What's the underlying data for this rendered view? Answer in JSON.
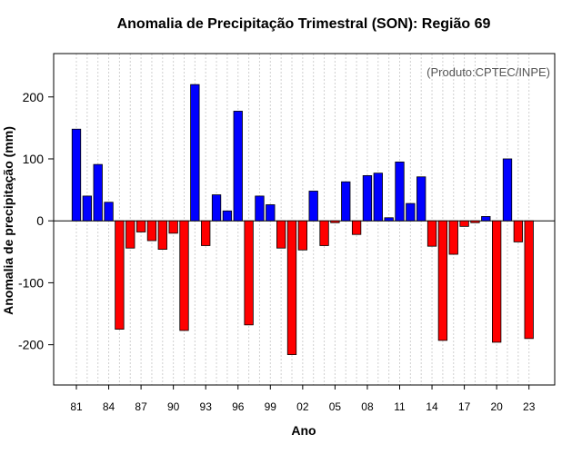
{
  "chart_data": {
    "type": "bar",
    "title": "Anomalia de Precipitação Trimestral (SON): Região 69",
    "xlabel": "Ano",
    "ylabel": "Anomalia de precipitação (mm)",
    "annotation": "(Produto:CPTEC/INPE)",
    "ylim": [
      -265,
      270
    ],
    "y_ticks": [
      -200,
      -100,
      0,
      100,
      200
    ],
    "x_tick_labels": [
      "81",
      "84",
      "87",
      "90",
      "93",
      "96",
      "99",
      "02",
      "05",
      "08",
      "11",
      "14",
      "17",
      "20",
      "23"
    ],
    "x_tick_years": [
      1981,
      1984,
      1987,
      1990,
      1993,
      1996,
      1999,
      2002,
      2005,
      2008,
      2011,
      2014,
      2017,
      2020,
      2023
    ],
    "years": [
      1981,
      1982,
      1983,
      1984,
      1985,
      1986,
      1987,
      1988,
      1989,
      1990,
      1991,
      1992,
      1993,
      1994,
      1995,
      1996,
      1997,
      1998,
      1999,
      2000,
      2001,
      2002,
      2003,
      2004,
      2005,
      2006,
      2007,
      2008,
      2009,
      2010,
      2011,
      2012,
      2013,
      2014,
      2015,
      2016,
      2017,
      2018,
      2019,
      2020,
      2021,
      2022,
      2023
    ],
    "values": [
      148,
      40,
      91,
      30,
      -175,
      -44,
      -18,
      -32,
      -46,
      -20,
      -177,
      220,
      -40,
      42,
      16,
      177,
      -168,
      40,
      26,
      -44,
      -216,
      -47,
      48,
      -40,
      -3,
      63,
      -22,
      73,
      77,
      5,
      95,
      28,
      71,
      -41,
      -193,
      -54,
      -9,
      -3,
      7,
      -196,
      100,
      -34,
      -190
    ],
    "positive_color": "#0000ff",
    "negative_color": "#ff0000"
  }
}
